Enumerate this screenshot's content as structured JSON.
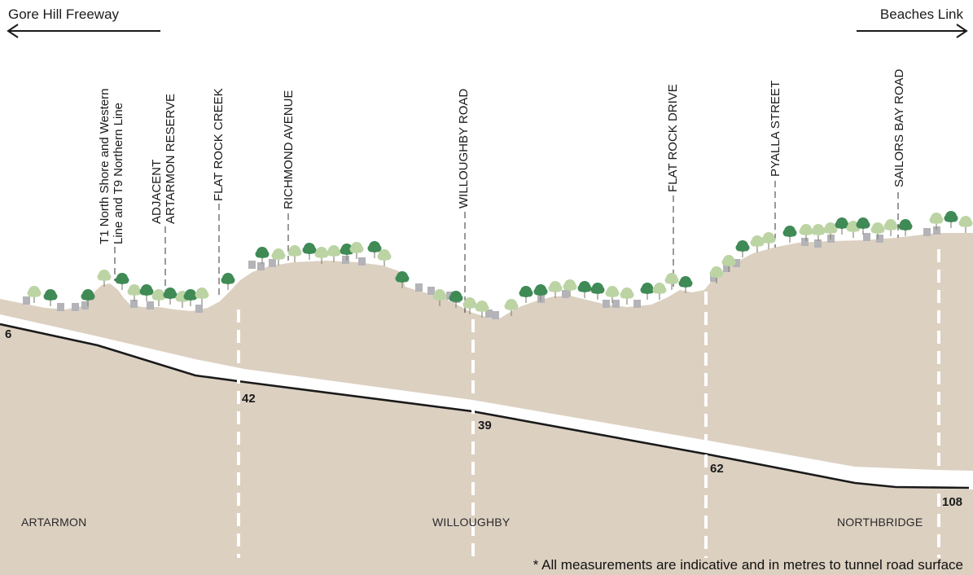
{
  "header": {
    "left_direction": "Gore Hill Freeway",
    "right_direction": "Beaches Link"
  },
  "landmarks": [
    {
      "id": "rail",
      "line1": "T1 North Shore and Western",
      "line2": "Line and T9 Northern Line"
    },
    {
      "id": "reserve",
      "line1": "ADJACENT",
      "line2": "ARTARMON RESERVE"
    },
    {
      "id": "creek",
      "line1": "FLAT ROCK CREEK"
    },
    {
      "id": "richmond",
      "line1": "RICHMOND AVENUE"
    },
    {
      "id": "willoughby",
      "line1": "WILLOUGHBY ROAD"
    },
    {
      "id": "flatrockdr",
      "line1": "FLAT ROCK DRIVE"
    },
    {
      "id": "pyalla",
      "line1": "PYALLA STREET"
    },
    {
      "id": "sailors",
      "line1": "SAILORS BAY ROAD"
    }
  ],
  "depths": [
    "6",
    "42",
    "39",
    "62",
    "108"
  ],
  "suburbs": [
    "ARTARMON",
    "WILLOUGHBY",
    "NORTHBRIDGE"
  ],
  "footnote": "* All measurements are indicative and in metres to tunnel road surface",
  "colors": {
    "ground": "#dcd0c1",
    "tunnel_band": "#ffffff",
    "road_line": "#1a1a1a",
    "tree_dark": "#3f8a55",
    "tree_light": "#bcd4a4",
    "building": "#b3b3b8"
  }
}
